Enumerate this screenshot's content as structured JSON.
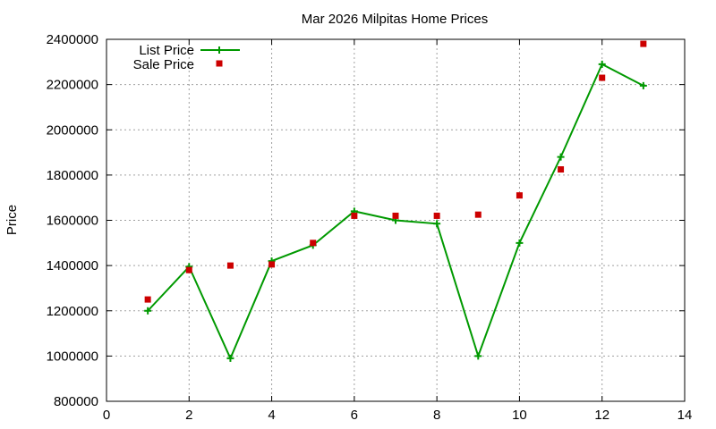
{
  "chart_data": {
    "type": "line",
    "title": "Mar 2026 Milpitas Home Prices",
    "xlabel": "",
    "ylabel": "Price",
    "xlim": [
      0,
      14
    ],
    "ylim": [
      800000,
      2400000
    ],
    "xticks": [
      0,
      2,
      4,
      6,
      8,
      10,
      12,
      14
    ],
    "yticks": [
      800000,
      1000000,
      1200000,
      1400000,
      1600000,
      1800000,
      2000000,
      2200000,
      2400000
    ],
    "grid": true,
    "legend_position": "top-left",
    "series": [
      {
        "name": "List Price",
        "style": "line+plus-markers",
        "color": "#009900",
        "x": [
          1,
          2,
          3,
          4,
          5,
          6,
          7,
          8,
          9,
          10,
          11,
          12,
          13
        ],
        "y": [
          1200000,
          1395000,
          990000,
          1420000,
          1490000,
          1640000,
          1600000,
          1585000,
          1000000,
          1500000,
          1880000,
          2290000,
          2195000
        ]
      },
      {
        "name": "Sale Price",
        "style": "square-markers",
        "color": "#cc0000",
        "x": [
          1,
          2,
          3,
          4,
          5,
          6,
          7,
          8,
          9,
          10,
          11,
          12,
          13
        ],
        "y": [
          1250000,
          1380000,
          1400000,
          1405000,
          1500000,
          1620000,
          1620000,
          1620000,
          1625000,
          1710000,
          1825000,
          2230000,
          2380000
        ]
      }
    ]
  }
}
